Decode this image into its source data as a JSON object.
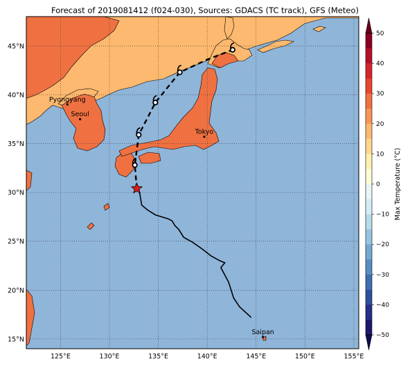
{
  "title": "Forecast of 2019081412 (f024-030), Sources: GDACS (TC track), GFS (Meteo)",
  "map": {
    "lon_range": [
      121.5,
      155.5
    ],
    "lat_range": [
      14,
      48
    ],
    "lon_ticks": [
      {
        "value": 125,
        "label": "125°E"
      },
      {
        "value": 130,
        "label": "130°E"
      },
      {
        "value": 135,
        "label": "135°E"
      },
      {
        "value": 140,
        "label": "140°E"
      },
      {
        "value": 145,
        "label": "145°E"
      },
      {
        "value": 150,
        "label": "150°E"
      },
      {
        "value": 155,
        "label": "155°E"
      }
    ],
    "lat_ticks": [
      {
        "value": 15,
        "label": "15°N"
      },
      {
        "value": 20,
        "label": "20°N"
      },
      {
        "value": 25,
        "label": "25°N"
      },
      {
        "value": 30,
        "label": "30°N"
      },
      {
        "value": 35,
        "label": "35°N"
      },
      {
        "value": 40,
        "label": "40°N"
      },
      {
        "value": 45,
        "label": "45°N"
      }
    ],
    "colors": {
      "ocean": "#8fb5d9",
      "land_warm": "#ef7142",
      "land_mild": "#fdb96f",
      "track": "#000000",
      "current_position": "#e51a1a"
    },
    "cities": [
      {
        "name": "Pyongyang",
        "lon": 125.7,
        "lat": 39.0
      },
      {
        "name": "Seoul",
        "lon": 127.0,
        "lat": 37.5
      },
      {
        "name": "Tokyo",
        "lon": 139.7,
        "lat": 35.7
      },
      {
        "name": "Saipan",
        "lon": 145.7,
        "lat": 15.2
      }
    ],
    "past_track": [
      [
        144.5,
        17.2
      ],
      [
        143.3,
        18.3
      ],
      [
        142.7,
        19.2
      ],
      [
        142.2,
        20.8
      ],
      [
        141.4,
        22.3
      ],
      [
        141.8,
        22.8
      ],
      [
        141.3,
        23.0
      ],
      [
        140.4,
        23.5
      ],
      [
        139.5,
        24.2
      ],
      [
        138.5,
        24.9
      ],
      [
        137.6,
        25.4
      ],
      [
        137.1,
        26.2
      ],
      [
        136.7,
        26.6
      ],
      [
        136.4,
        27.1
      ],
      [
        136.0,
        27.3
      ],
      [
        134.7,
        27.7
      ],
      [
        133.9,
        28.2
      ],
      [
        133.3,
        28.7
      ],
      [
        133.1,
        29.9
      ],
      [
        132.8,
        30.4
      ]
    ],
    "current_position": {
      "lon": 132.8,
      "lat": 30.4
    },
    "forecast_track": [
      [
        132.8,
        30.4
      ],
      [
        132.6,
        32.8
      ],
      [
        133.0,
        35.9
      ],
      [
        134.7,
        39.2
      ],
      [
        137.2,
        42.3
      ],
      [
        140.0,
        43.6
      ],
      [
        142.6,
        44.6
      ]
    ],
    "forecast_points": [
      {
        "lon": 132.6,
        "lat": 32.8
      },
      {
        "lon": 133.0,
        "lat": 35.9
      },
      {
        "lon": 134.7,
        "lat": 39.2
      },
      {
        "lon": 137.2,
        "lat": 42.3
      },
      {
        "lon": 142.6,
        "lat": 44.6
      }
    ]
  },
  "colorbar": {
    "label": "Max Temperature (°C)",
    "range": [
      -50,
      50
    ],
    "ticks": [
      {
        "value": 50,
        "label": "50"
      },
      {
        "value": 40,
        "label": "40"
      },
      {
        "value": 30,
        "label": "30"
      },
      {
        "value": 20,
        "label": "20"
      },
      {
        "value": 10,
        "label": "10"
      },
      {
        "value": 0,
        "label": "0"
      },
      {
        "value": -10,
        "label": "−10"
      },
      {
        "value": -20,
        "label": "−20"
      },
      {
        "value": -30,
        "label": "−30"
      },
      {
        "value": -40,
        "label": "−40"
      },
      {
        "value": -50,
        "label": "−50"
      }
    ],
    "bins": [
      {
        "from": 45,
        "to": 50,
        "color": "#8b0021"
      },
      {
        "from": 40,
        "to": 45,
        "color": "#b3112b"
      },
      {
        "from": 35,
        "to": 40,
        "color": "#d6262c"
      },
      {
        "from": 30,
        "to": 35,
        "color": "#e8472f"
      },
      {
        "from": 25,
        "to": 30,
        "color": "#ef7142"
      },
      {
        "from": 20,
        "to": 25,
        "color": "#f79656"
      },
      {
        "from": 15,
        "to": 20,
        "color": "#fdb96f"
      },
      {
        "from": 10,
        "to": 15,
        "color": "#fed78d"
      },
      {
        "from": 5,
        "to": 10,
        "color": "#fff0b0"
      },
      {
        "from": 0,
        "to": 5,
        "color": "#fbfdd6"
      },
      {
        "from": -5,
        "to": 0,
        "color": "#eaf6f6"
      },
      {
        "from": -10,
        "to": -5,
        "color": "#d4ecf3"
      },
      {
        "from": -15,
        "to": -10,
        "color": "#b7dcea"
      },
      {
        "from": -20,
        "to": -15,
        "color": "#95c4df"
      },
      {
        "from": -25,
        "to": -20,
        "color": "#74a9cf"
      },
      {
        "from": -30,
        "to": -25,
        "color": "#568ec2"
      },
      {
        "from": -35,
        "to": -30,
        "color": "#3f6fb2"
      },
      {
        "from": -40,
        "to": -35,
        "color": "#2f509e"
      },
      {
        "from": -45,
        "to": -40,
        "color": "#272f88"
      },
      {
        "from": -50,
        "to": -45,
        "color": "#1f1670"
      }
    ],
    "over_color": "#67001a",
    "under_color": "#100a50"
  }
}
